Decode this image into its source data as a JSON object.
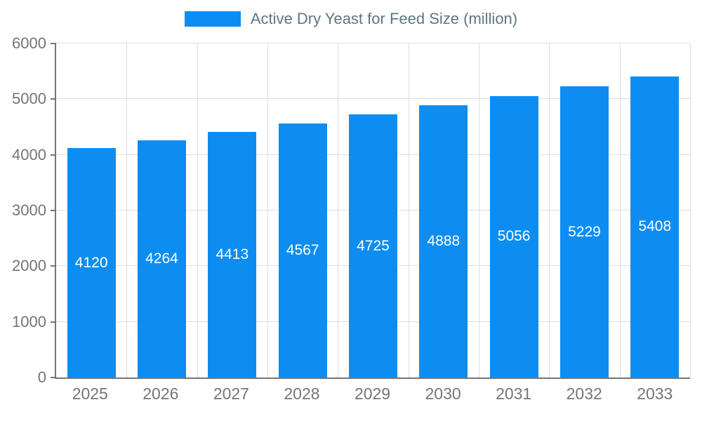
{
  "chart_data": {
    "type": "bar",
    "title": "Active Dry Yeast for Feed Size (million)",
    "categories": [
      "2025",
      "2026",
      "2027",
      "2028",
      "2029",
      "2030",
      "2031",
      "2032",
      "2033"
    ],
    "values": [
      4120,
      4264,
      4413,
      4567,
      4725,
      4888,
      5056,
      5229,
      5408
    ],
    "xlabel": "",
    "ylabel": "",
    "ylim": [
      0,
      6000
    ],
    "ytick_step": 1000,
    "yticks": [
      "0",
      "1000",
      "2000",
      "3000",
      "4000",
      "5000",
      "6000"
    ],
    "grid": true,
    "legend_position": "top-center",
    "bar_color": "#0d8df2",
    "value_label_color": "#ffffff",
    "axis_text_color": "#757575",
    "grid_color": "#dddddd",
    "legend_text_color": "#5f7585"
  }
}
